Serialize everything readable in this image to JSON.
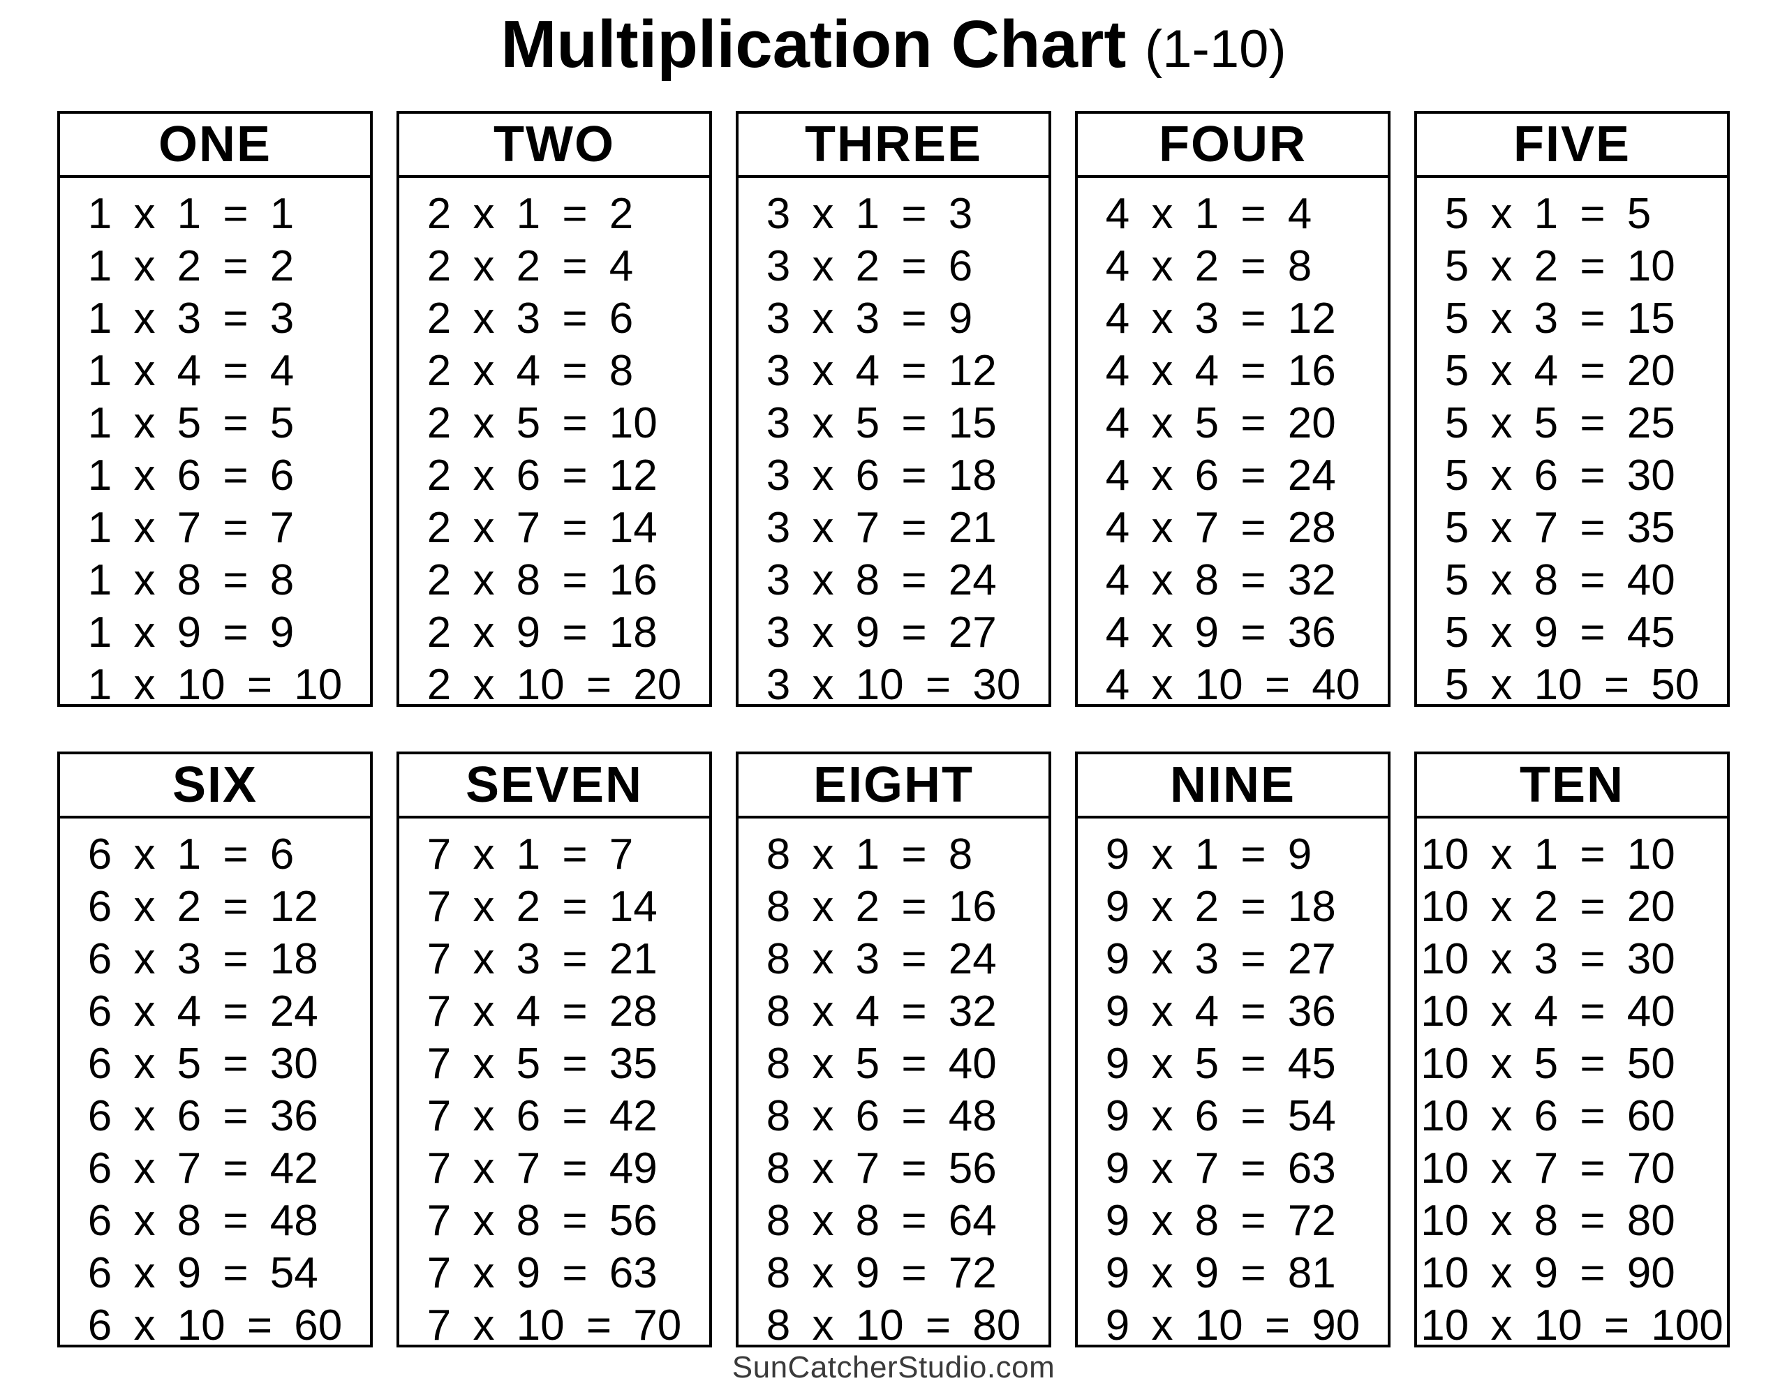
{
  "title": {
    "main": "Multiplication Chart",
    "suffix": "(1-10)"
  },
  "footer": {
    "credit": "SunCatcherStudio.com"
  },
  "tables": [
    {
      "label": "ONE",
      "facts": [
        "1 x 1 = 1",
        "1 x 2 = 2",
        "1 x 3 = 3",
        "1 x 4 = 4",
        "1 x 5 = 5",
        "1 x 6 = 6",
        "1 x 7 = 7",
        "1 x 8 = 8",
        "1 x 9 = 9",
        "1 x 10 = 10"
      ]
    },
    {
      "label": "TWO",
      "facts": [
        "2 x 1 = 2",
        "2 x 2 = 4",
        "2 x 3 = 6",
        "2 x 4 = 8",
        "2 x 5 = 10",
        "2 x 6 = 12",
        "2 x 7 = 14",
        "2 x 8 = 16",
        "2 x 9 = 18",
        "2 x 10 = 20"
      ]
    },
    {
      "label": "THREE",
      "facts": [
        "3 x 1 = 3",
        "3 x 2 = 6",
        "3 x 3 = 9",
        "3 x 4 = 12",
        "3 x 5 = 15",
        "3 x 6 = 18",
        "3 x 7 = 21",
        "3 x 8 = 24",
        "3 x 9 = 27",
        "3 x 10 = 30"
      ]
    },
    {
      "label": "FOUR",
      "facts": [
        "4 x 1 = 4",
        "4 x 2 = 8",
        "4 x 3 = 12",
        "4 x 4 = 16",
        "4 x 5 = 20",
        "4 x 6 = 24",
        "4 x 7 = 28",
        "4 x 8 = 32",
        "4 x 9 = 36",
        "4 x 10 = 40"
      ]
    },
    {
      "label": "FIVE",
      "facts": [
        "5 x 1 = 5",
        "5 x 2 = 10",
        "5 x 3 = 15",
        "5 x 4 = 20",
        "5 x 5 = 25",
        "5 x 6 = 30",
        "5 x 7 = 35",
        "5 x 8 = 40",
        "5 x 9 = 45",
        "5 x 10 = 50"
      ]
    },
    {
      "label": "SIX",
      "facts": [
        "6 x 1 = 6",
        "6 x 2 = 12",
        "6 x 3 = 18",
        "6 x 4 = 24",
        "6 x 5 = 30",
        "6 x 6 = 36",
        "6 x 7 = 42",
        "6 x 8 = 48",
        "6 x 9 = 54",
        "6 x 10 = 60"
      ]
    },
    {
      "label": "SEVEN",
      "facts": [
        "7 x 1 = 7",
        "7 x 2 = 14",
        "7 x 3 = 21",
        "7 x 4 = 28",
        "7 x 5 = 35",
        "7 x 6 = 42",
        "7 x 7 = 49",
        "7 x 8 = 56",
        "7 x 9 = 63",
        "7 x 10 = 70"
      ]
    },
    {
      "label": "EIGHT",
      "facts": [
        "8 x 1 = 8",
        "8 x 2 = 16",
        "8 x 3 = 24",
        "8 x 4 = 32",
        "8 x 5 = 40",
        "8 x 6 = 48",
        "8 x 7 = 56",
        "8 x 8 = 64",
        "8 x 9 = 72",
        "8 x 10 = 80"
      ]
    },
    {
      "label": "NINE",
      "facts": [
        "9 x 1 = 9",
        "9 x 2 = 18",
        "9 x 3 = 27",
        "9 x 4 = 36",
        "9 x 5 = 45",
        "9 x 6 = 54",
        "9 x 7 = 63",
        "9 x 8 = 72",
        "9 x 9 = 81",
        "9 x 10 = 90"
      ]
    },
    {
      "label": "TEN",
      "facts": [
        "10 x 1 = 10",
        "10 x 2 = 20",
        "10 x 3 = 30",
        "10 x 4 = 40",
        "10 x 5 = 50",
        "10 x 6 = 60",
        "10 x 7 = 70",
        "10 x 8 = 80",
        "10 x 9 = 90",
        "10 x 10 = 100"
      ]
    }
  ]
}
